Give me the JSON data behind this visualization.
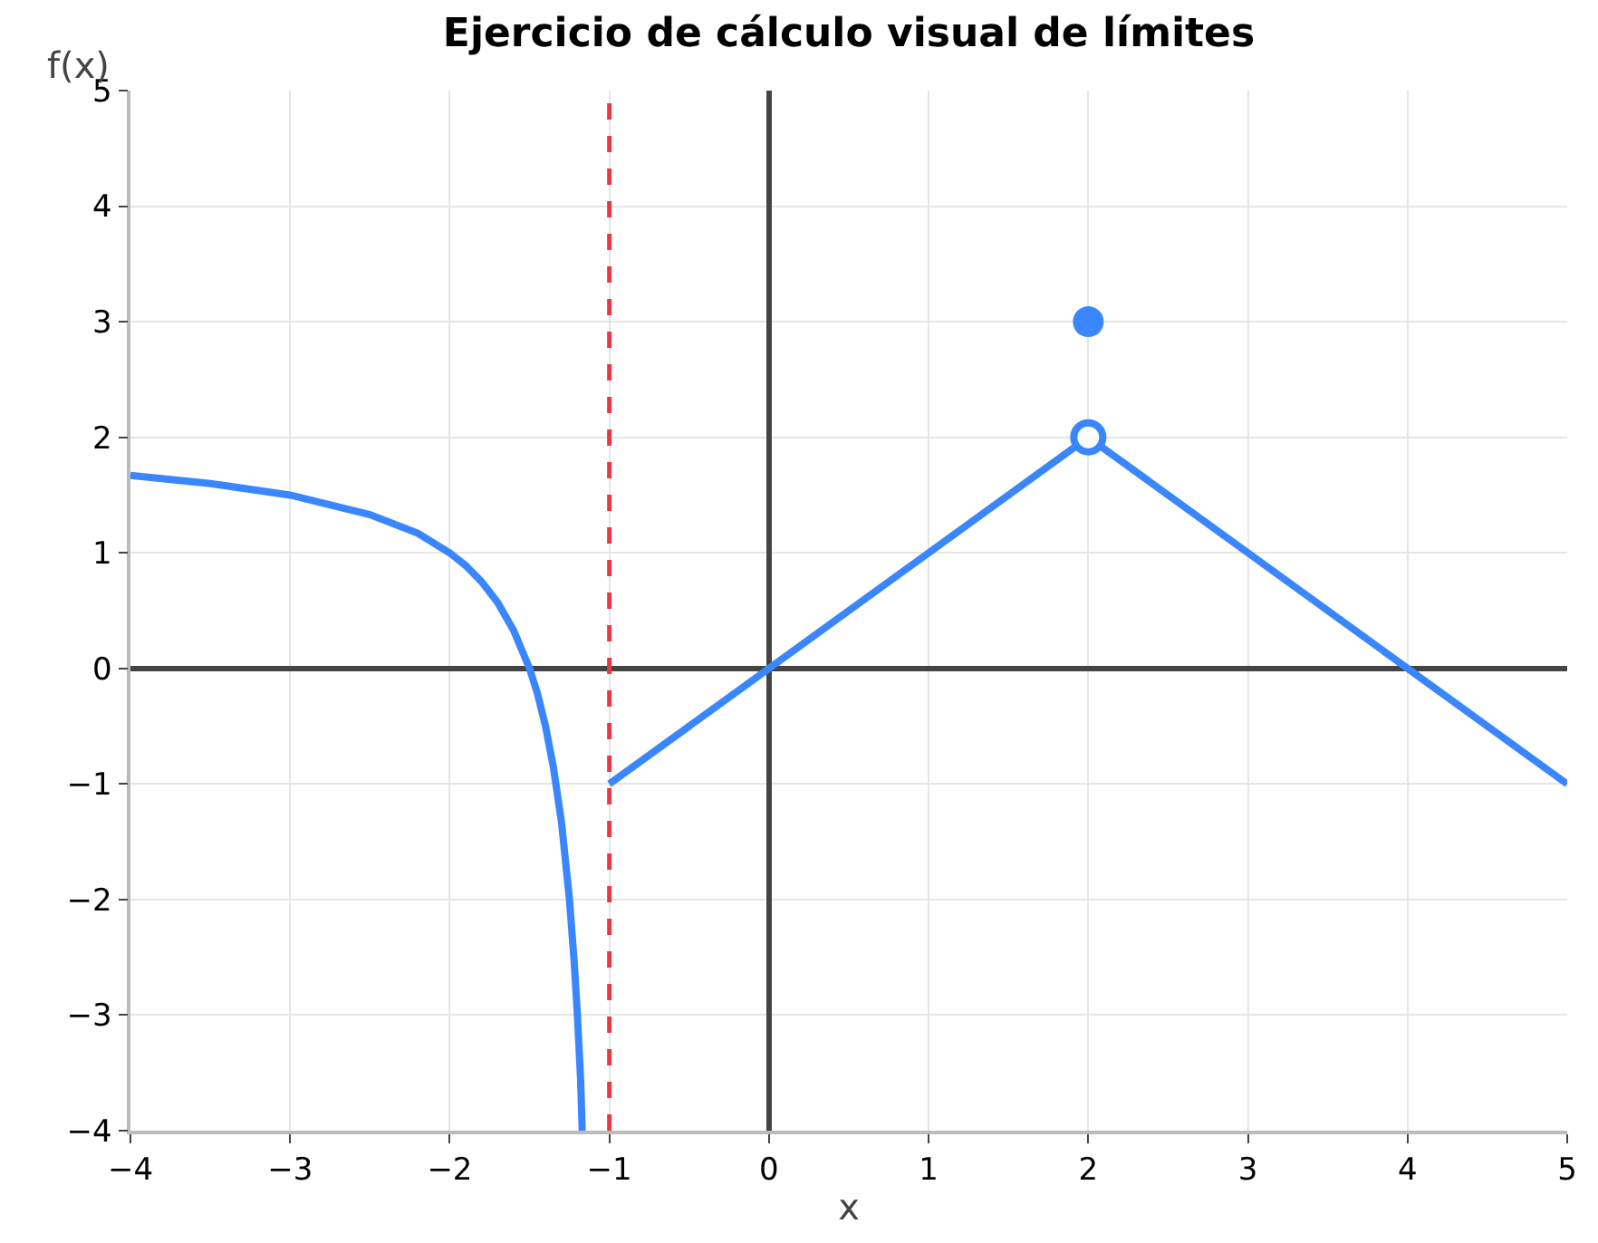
{
  "chart_data": {
    "type": "line",
    "title": "Ejercicio de cálculo visual de límites",
    "xlabel": "x",
    "ylabel": "f(x)",
    "xlim": [
      -4,
      5
    ],
    "ylim": [
      -4,
      5
    ],
    "xticks": [
      {
        "value": -4,
        "label": "−4"
      },
      {
        "value": -3,
        "label": "−3"
      },
      {
        "value": -2,
        "label": "−2"
      },
      {
        "value": -1,
        "label": "−1"
      },
      0,
      1,
      2,
      3,
      4,
      5
    ],
    "yticks": [
      {
        "value": -4,
        "label": "−4"
      },
      {
        "value": -3,
        "label": "−3"
      },
      {
        "value": -2,
        "label": "−2"
      },
      {
        "value": -1,
        "label": "−1"
      },
      0,
      1,
      2,
      3,
      4,
      5
    ],
    "grid": true,
    "series": [
      {
        "color": "#3a86ff",
        "marker": "none",
        "x": [
          -4,
          -3.5,
          -3,
          -2.5,
          -2.2,
          -2,
          -1.9,
          -1.8,
          -1.7,
          -1.6,
          -1.5,
          -1.45,
          -1.4,
          -1.35,
          -1.3,
          -1.25,
          -1.22,
          -1.2,
          -1.18,
          -1.17
        ],
        "values": [
          1.67,
          1.6,
          1.5,
          1.33,
          1.17,
          1,
          0.89,
          0.75,
          0.57,
          0.33,
          0,
          -0.22,
          -0.5,
          -0.86,
          -1.33,
          -2,
          -2.55,
          -3,
          -3.56,
          -4
        ]
      },
      {
        "color": "#3a86ff",
        "marker": "none",
        "x": [
          -1,
          2,
          5
        ],
        "values": [
          -1,
          2,
          -1
        ]
      },
      {
        "type": "scatter",
        "color": "#3a86ff",
        "colors": [
          "#ffffff"
        ],
        "marker": "circle",
        "x": [
          2
        ],
        "values": [
          2
        ]
      },
      {
        "type": "scatter",
        "color": "#3a86ff",
        "marker": "circle",
        "x": [
          2
        ],
        "values": [
          3
        ]
      }
    ],
    "ref_lines": [
      {
        "axis": "x",
        "value": -1,
        "color": "#e63946",
        "line_style": "dashed"
      }
    ]
  }
}
